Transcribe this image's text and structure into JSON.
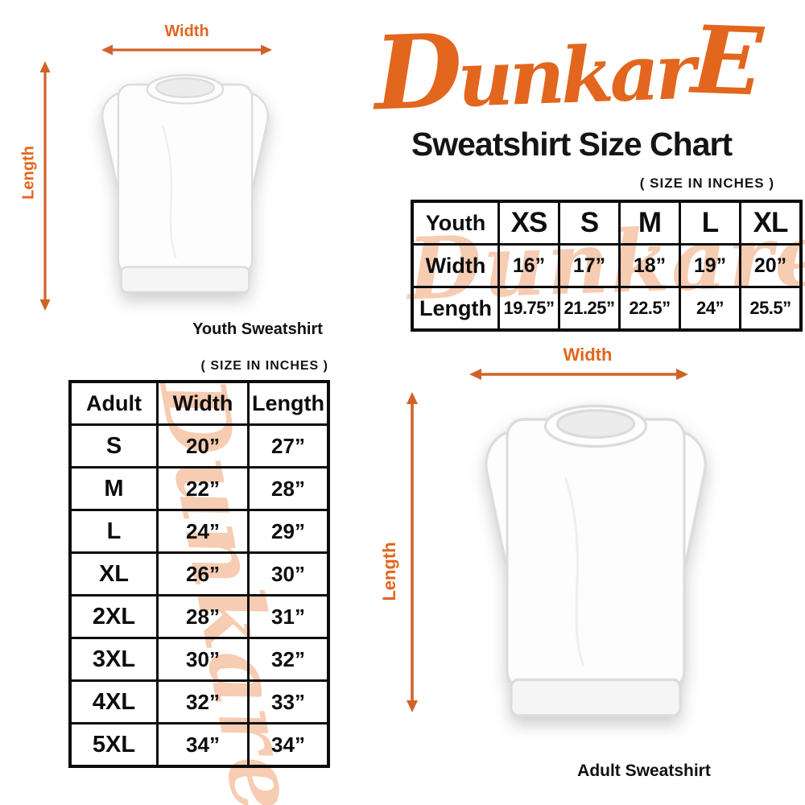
{
  "colors": {
    "accent": "#e2661e",
    "arrow": "#d0622a",
    "watermark": "#f6ccb2",
    "border": "#0c0c0c",
    "ink": "#0d0d0d"
  },
  "brand": {
    "logo": {
      "part1": "D",
      "part2": "unkar",
      "part3": "E"
    },
    "watermark_text": "Dunkare"
  },
  "header": {
    "title": "Sweatshirt Size Chart",
    "units_note": "( SIZE IN INCHES )"
  },
  "youth_diagram": {
    "width_label": "Width",
    "length_label": "Length",
    "caption": "Youth Sweatshirt"
  },
  "youth_table": {
    "rows": [
      [
        "Youth",
        "XS",
        "S",
        "M",
        "L",
        "XL"
      ],
      [
        "Width",
        "16”",
        "17”",
        "18”",
        "19”",
        "20”"
      ],
      [
        "Length",
        "19.75”",
        "21.25”",
        "22.5”",
        "24”",
        "25.5”"
      ]
    ]
  },
  "adult_section": {
    "units_note": "( SIZE IN INCHES )"
  },
  "adult_table": {
    "rows": [
      [
        "Adult",
        "Width",
        "Length"
      ],
      [
        "S",
        "20”",
        "27”"
      ],
      [
        "M",
        "22”",
        "28”"
      ],
      [
        "L",
        "24”",
        "29”"
      ],
      [
        "XL",
        "26”",
        "30”"
      ],
      [
        "2XL",
        "28”",
        "31”"
      ],
      [
        "3XL",
        "30”",
        "32”"
      ],
      [
        "4XL",
        "32”",
        "33”"
      ],
      [
        "5XL",
        "34”",
        "34”"
      ]
    ]
  },
  "adult_diagram": {
    "width_label": "Width",
    "length_label": "Length",
    "caption": "Adult Sweatshirt"
  }
}
